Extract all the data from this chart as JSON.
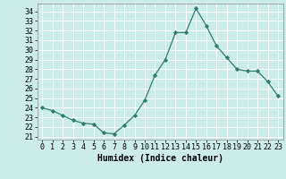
{
  "x": [
    0,
    1,
    2,
    3,
    4,
    5,
    6,
    7,
    8,
    9,
    10,
    11,
    12,
    13,
    14,
    15,
    16,
    17,
    18,
    19,
    20,
    21,
    22,
    23
  ],
  "y": [
    24.0,
    23.7,
    23.2,
    22.7,
    22.4,
    22.3,
    21.4,
    21.3,
    22.2,
    23.2,
    24.8,
    27.4,
    29.0,
    31.8,
    31.8,
    34.3,
    32.5,
    30.4,
    29.2,
    28.0,
    27.8,
    27.8,
    26.7,
    25.2
  ],
  "line_color": "#2e7d6e",
  "marker": "D",
  "marker_size": 2.2,
  "bg_color": "#ccecea",
  "grid_color": "#ffffff",
  "xlabel": "Humidex (Indice chaleur)",
  "ylabel_ticks": [
    21,
    22,
    23,
    24,
    25,
    26,
    27,
    28,
    29,
    30,
    31,
    32,
    33,
    34
  ],
  "ylim": [
    20.7,
    34.8
  ],
  "xlim": [
    -0.5,
    23.5
  ],
  "tick_fontsize": 6.0,
  "xlabel_fontsize": 7.0
}
